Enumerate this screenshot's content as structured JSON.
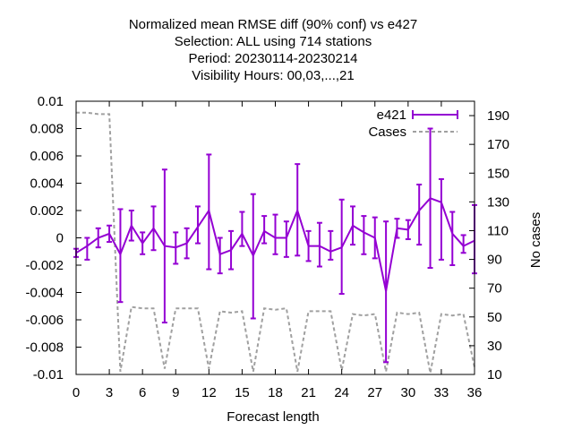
{
  "chart_data": {
    "type": "line",
    "title_lines": [
      "Normalized mean RMSE diff (90% conf) vs e427",
      "Selection: ALL using   714 stations",
      "Period: 20230114-20230214",
      "Visibility   Hours:  00,03,...,21"
    ],
    "xlabel": "Forecast length",
    "ylabel_right": "No cases",
    "xlim": [
      0,
      36
    ],
    "ylim": [
      -0.01,
      0.01
    ],
    "y2lim": [
      10,
      200
    ],
    "xticks": [
      0,
      3,
      6,
      9,
      12,
      15,
      18,
      21,
      24,
      27,
      30,
      33,
      36
    ],
    "yticks": [
      -0.01,
      -0.008,
      -0.006,
      -0.004,
      -0.002,
      0,
      0.002,
      0.004,
      0.006,
      0.008,
      0.01
    ],
    "ytick_labels": [
      "-0.01",
      "-0.008",
      "-0.006",
      "-0.004",
      "-0.002",
      "0",
      "0.002",
      "0.004",
      "0.006",
      "0.008",
      "0.01"
    ],
    "y2ticks": [
      10,
      30,
      50,
      70,
      90,
      110,
      130,
      150,
      170,
      190
    ],
    "grid": false,
    "legend_position": "top-right",
    "colors": {
      "e421": "#9400d3",
      "cases": "#a0a0a0"
    },
    "series": [
      {
        "name": "e421",
        "type": "errorbar-line",
        "x": [
          0,
          1,
          2,
          3,
          4,
          5,
          6,
          7,
          8,
          9,
          10,
          11,
          12,
          13,
          14,
          15,
          16,
          17,
          18,
          19,
          20,
          21,
          22,
          23,
          24,
          25,
          26,
          27,
          28,
          29,
          30,
          31,
          32,
          33,
          34,
          35,
          36
        ],
        "y": [
          -0.0011,
          -0.0006,
          0.0,
          0.0003,
          -0.0012,
          0.0009,
          -0.0004,
          0.0007,
          -0.0006,
          -0.0007,
          -0.0004,
          0.0008,
          0.002,
          -0.0012,
          -0.0009,
          0.0003,
          -0.0013,
          0.0005,
          0.0,
          0.0,
          0.002,
          -0.0006,
          -0.0006,
          -0.001,
          -0.0007,
          0.0009,
          0.0004,
          0.0,
          -0.0039,
          0.0007,
          0.0006,
          0.002,
          0.0029,
          0.0026,
          0.0003,
          -0.0006,
          -0.0002
        ],
        "ylow": [
          -0.0014,
          -0.0016,
          -0.0007,
          -0.0003,
          -0.0047,
          -0.0002,
          -0.0012,
          -0.0009,
          -0.0062,
          -0.0019,
          -0.0015,
          -0.0004,
          -0.0023,
          -0.0026,
          -0.0023,
          -0.0006,
          -0.0059,
          -0.0004,
          -0.0012,
          -0.0014,
          -0.0013,
          -0.0017,
          -0.0021,
          -0.0016,
          -0.0041,
          -0.0005,
          -0.0012,
          -0.0015,
          -0.0091,
          0.0,
          -0.0001,
          -0.0005,
          -0.0022,
          -0.0016,
          -0.002,
          -0.0011,
          -0.0026
        ],
        "yhigh": [
          -0.0008,
          0.0,
          0.0007,
          0.0009,
          0.0021,
          0.002,
          0.0004,
          0.0023,
          0.005,
          0.0004,
          0.0007,
          0.0023,
          0.0061,
          0.0,
          0.0005,
          0.0019,
          0.0032,
          0.0016,
          0.0017,
          0.0012,
          0.0054,
          0.0005,
          0.0011,
          0.0005,
          0.0028,
          0.0023,
          0.0016,
          0.0015,
          0.0012,
          0.0014,
          0.0013,
          0.0039,
          0.008,
          0.0043,
          0.0019,
          0.0002,
          0.0024
        ]
      },
      {
        "name": "Cases",
        "axis": "y2",
        "type": "dashed-line",
        "x": [
          0,
          1,
          2,
          3,
          4,
          5,
          6,
          7,
          8,
          9,
          10,
          11,
          12,
          13,
          14,
          15,
          16,
          17,
          18,
          19,
          20,
          21,
          22,
          23,
          24,
          25,
          26,
          27,
          28,
          29,
          30,
          31,
          32,
          33,
          34,
          35,
          36
        ],
        "values": [
          192,
          192,
          191,
          191,
          12,
          57,
          56,
          56,
          14,
          56,
          56,
          56,
          14,
          54,
          53,
          54,
          12,
          56,
          55,
          56,
          12,
          54,
          54,
          54,
          13,
          52,
          51,
          52,
          12,
          53,
          52,
          53,
          11,
          52,
          51,
          52,
          15
        ]
      }
    ]
  }
}
